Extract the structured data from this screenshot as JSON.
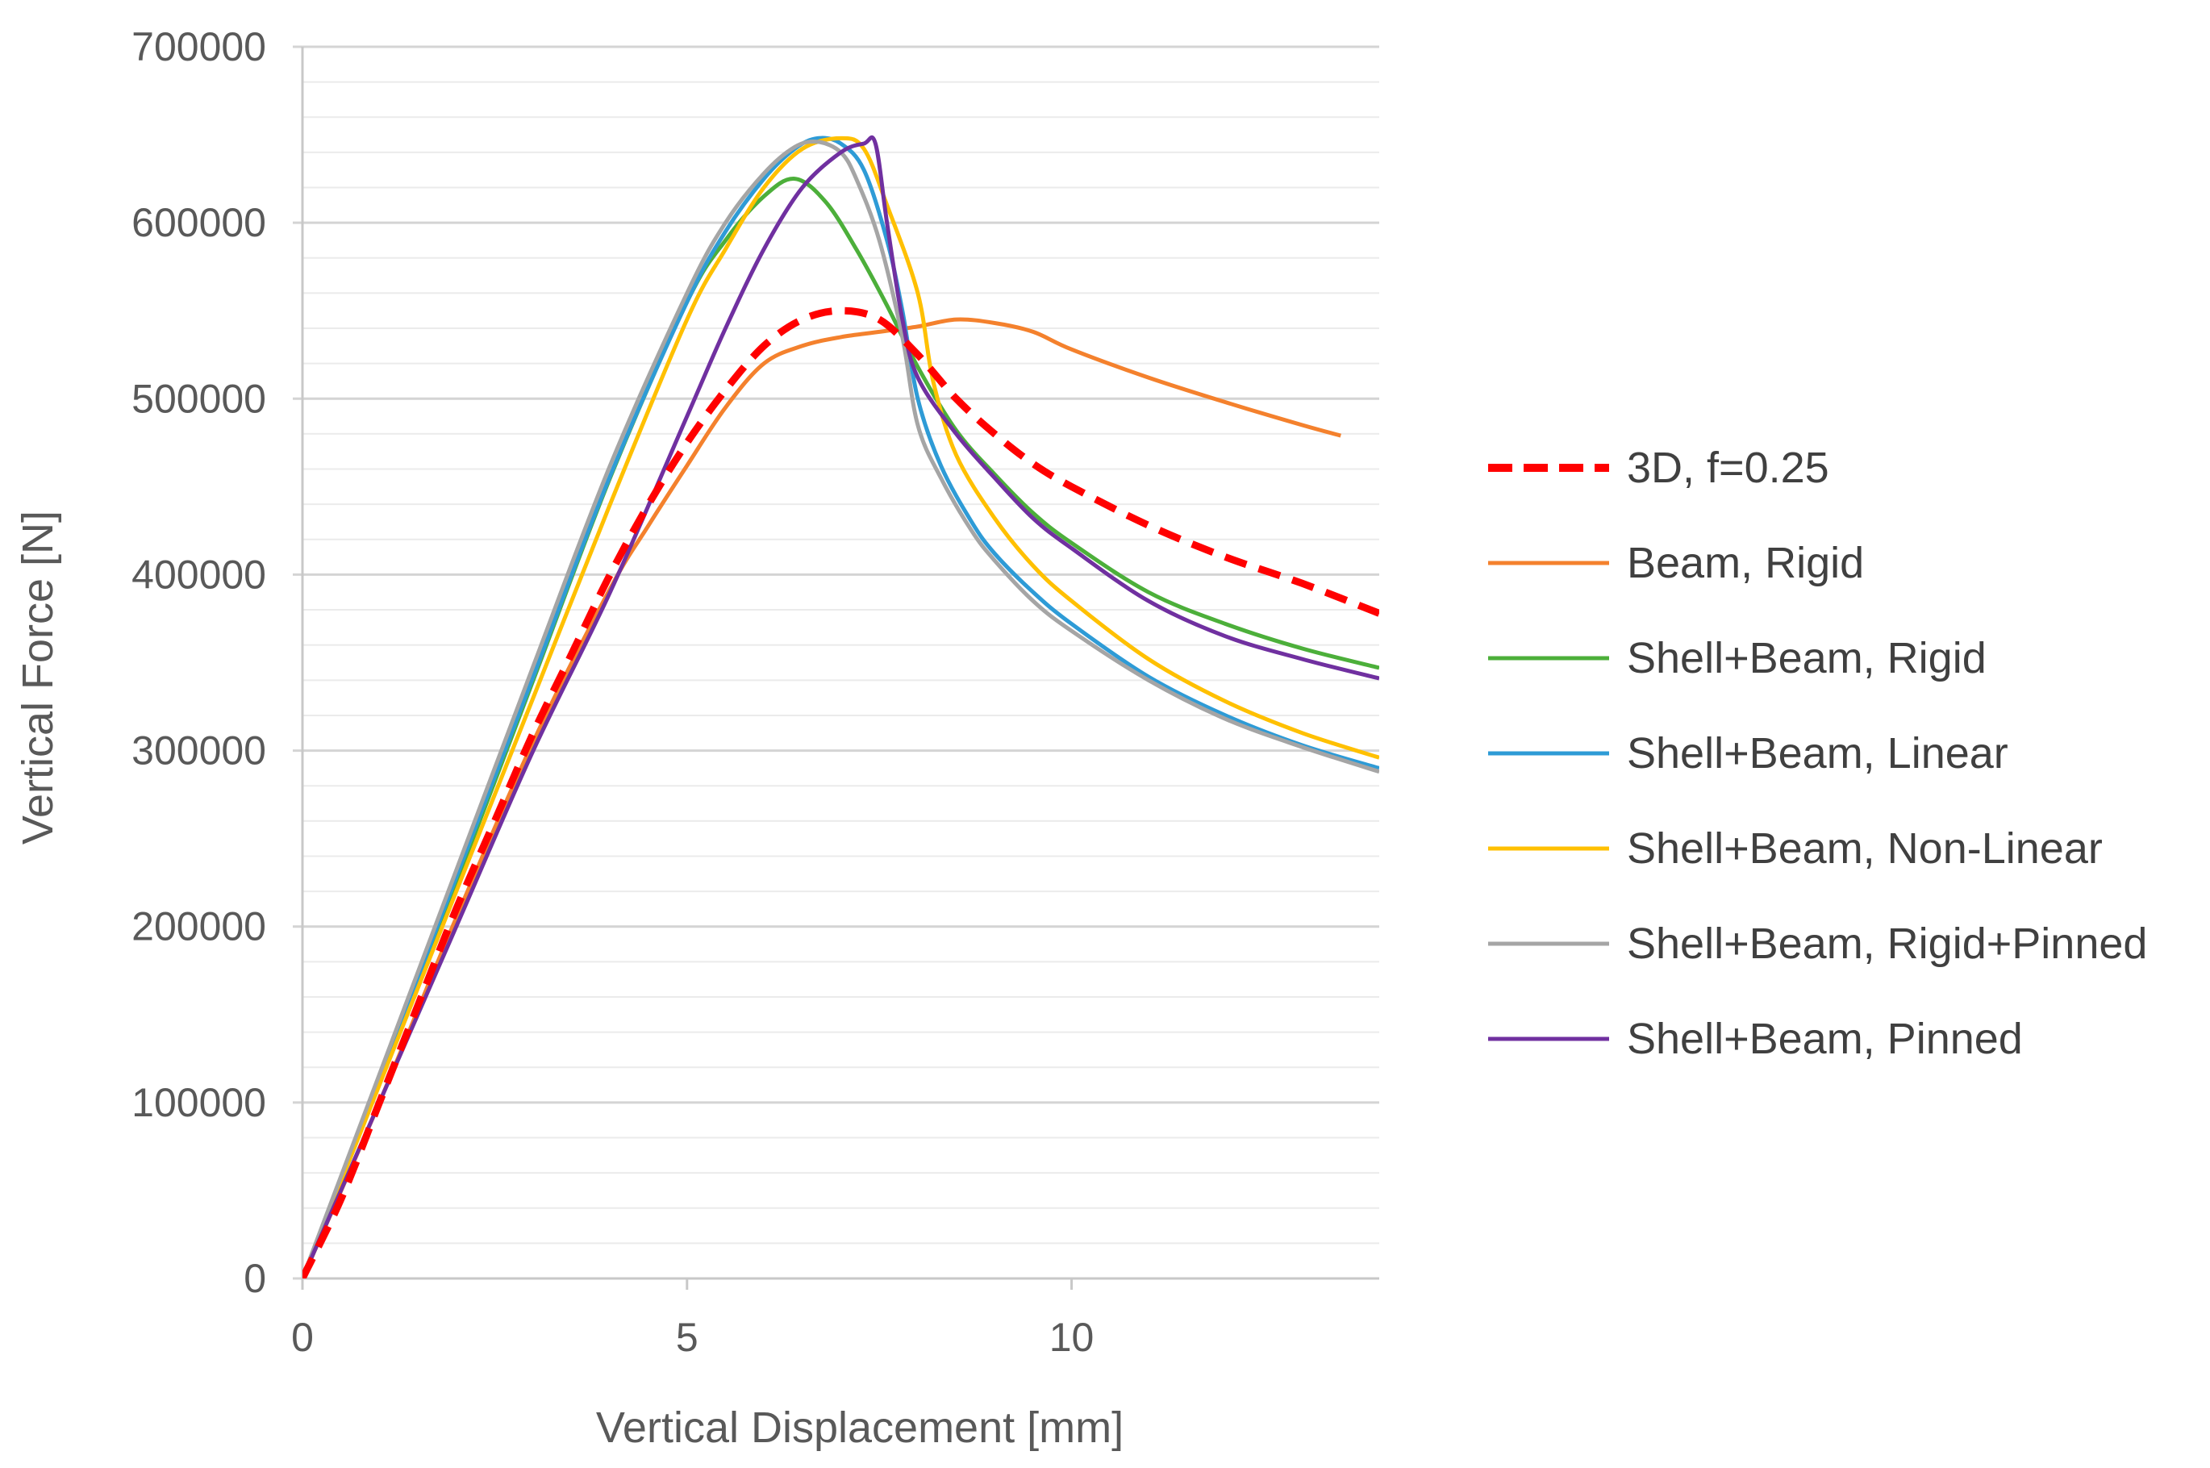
{
  "chart_data": {
    "type": "line",
    "title": "",
    "xlabel": "Vertical Displacement [mm]",
    "ylabel": "Vertical Force [N]",
    "xlim": [
      0,
      14
    ],
    "ylim": [
      0,
      700000
    ],
    "x_ticks": [
      0,
      5,
      10
    ],
    "x_tick_labels": [
      "0",
      "5",
      "10"
    ],
    "y_ticks": [
      0,
      100000,
      200000,
      300000,
      400000,
      500000,
      600000,
      700000
    ],
    "y_tick_labels": [
      "0",
      "100000",
      "200000",
      "300000",
      "400000",
      "500000",
      "600000",
      "700000"
    ],
    "y_minor_step": 20000,
    "grid": true,
    "legend_position": "right",
    "series": [
      {
        "name": "3D, f=0.25",
        "color": "#FF0000",
        "dashed": true,
        "x": [
          0,
          0.5,
          1,
          1.5,
          2,
          2.5,
          3,
          3.5,
          4,
          4.5,
          5,
          5.5,
          6,
          6.5,
          7,
          7.5,
          8,
          8.5,
          9,
          9.5,
          10,
          11,
          12,
          13,
          14
        ],
        "y": [
          0,
          45000,
          100000,
          155000,
          210000,
          260000,
          310000,
          355000,
          400000,
          440000,
          475000,
          505000,
          530000,
          545000,
          550000,
          545000,
          525000,
          500000,
          480000,
          463000,
          450000,
          428000,
          410000,
          395000,
          378000
        ]
      },
      {
        "name": "Beam, Rigid",
        "color": "#F4812D",
        "dashed": false,
        "x": [
          0,
          1,
          2,
          3,
          4,
          4.5,
          5,
          5.5,
          6,
          6.5,
          7,
          7.5,
          8,
          8.5,
          9,
          9.5,
          10,
          11,
          12,
          13,
          13.5
        ],
        "y": [
          0,
          100000,
          205000,
          305000,
          392000,
          428000,
          462000,
          495000,
          520000,
          530000,
          535000,
          538000,
          541000,
          545000,
          543000,
          538000,
          528000,
          512000,
          498000,
          485000,
          479000
        ]
      },
      {
        "name": "Shell+Beam, Rigid",
        "color": "#4CAF3A",
        "dashed": false,
        "x": [
          0,
          1,
          2,
          3,
          4,
          5,
          5.5,
          6,
          6.4,
          6.8,
          7.2,
          7.6,
          8,
          8.5,
          9,
          9.5,
          10,
          11,
          12,
          13,
          14
        ],
        "y": [
          0,
          112000,
          225000,
          340000,
          455000,
          555000,
          590000,
          615000,
          625000,
          612000,
          585000,
          553000,
          518000,
          482000,
          457000,
          435000,
          418000,
          390000,
          372000,
          358000,
          347000
        ]
      },
      {
        "name": "Shell+Beam, Linear",
        "color": "#2E9BD6",
        "dashed": false,
        "x": [
          0,
          1,
          2,
          3,
          4,
          5,
          5.5,
          6,
          6.4,
          6.7,
          7,
          7.3,
          7.6,
          7.8,
          8,
          8.3,
          8.7,
          9,
          9.5,
          10,
          11,
          12,
          13,
          14
        ],
        "y": [
          0,
          114000,
          228000,
          342000,
          456000,
          555000,
          595000,
          625000,
          642000,
          648000,
          645000,
          630000,
          590000,
          550000,
          500000,
          462000,
          430000,
          412000,
          390000,
          372000,
          342000,
          320000,
          303000,
          290000
        ]
      },
      {
        "name": "Shell+Beam, Non-Linear",
        "color": "#FFC000",
        "dashed": false,
        "x": [
          0,
          1,
          2,
          3,
          4,
          5,
          5.5,
          6,
          6.5,
          7,
          7.3,
          7.6,
          8,
          8.2,
          8.5,
          9,
          9.5,
          10,
          11,
          12,
          13,
          14
        ],
        "y": [
          0,
          110000,
          220000,
          330000,
          440000,
          545000,
          585000,
          620000,
          642000,
          648000,
          642000,
          610000,
          560000,
          510000,
          468000,
          432000,
          405000,
          385000,
          352000,
          328000,
          310000,
          296000
        ]
      },
      {
        "name": "Shell+Beam, Rigid+Pinned",
        "color": "#A5A5A5",
        "dashed": false,
        "x": [
          0,
          1,
          2,
          3,
          4,
          5,
          5.5,
          6,
          6.4,
          6.7,
          7,
          7.2,
          7.5,
          7.8,
          8,
          8.3,
          8.7,
          9,
          9.5,
          10,
          11,
          12,
          13,
          14
        ],
        "y": [
          0,
          116000,
          232000,
          348000,
          462000,
          560000,
          600000,
          628000,
          643000,
          646000,
          640000,
          625000,
          590000,
          535000,
          485000,
          455000,
          425000,
          408000,
          385000,
          368000,
          340000,
          318000,
          302000,
          288000
        ]
      },
      {
        "name": "Shell+Beam, Pinned",
        "color": "#7030A0",
        "dashed": false,
        "x": [
          0,
          1,
          2,
          3,
          4,
          5,
          5.5,
          6,
          6.5,
          7,
          7.3,
          7.45,
          7.6,
          7.8,
          8,
          8.5,
          9,
          9.5,
          10,
          11,
          12,
          13,
          14
        ],
        "y": [
          0,
          100000,
          200000,
          300000,
          390000,
          490000,
          540000,
          585000,
          620000,
          640000,
          645000,
          645000,
          600000,
          545000,
          512000,
          480000,
          455000,
          432000,
          415000,
          385000,
          365000,
          352000,
          341000
        ]
      }
    ]
  }
}
